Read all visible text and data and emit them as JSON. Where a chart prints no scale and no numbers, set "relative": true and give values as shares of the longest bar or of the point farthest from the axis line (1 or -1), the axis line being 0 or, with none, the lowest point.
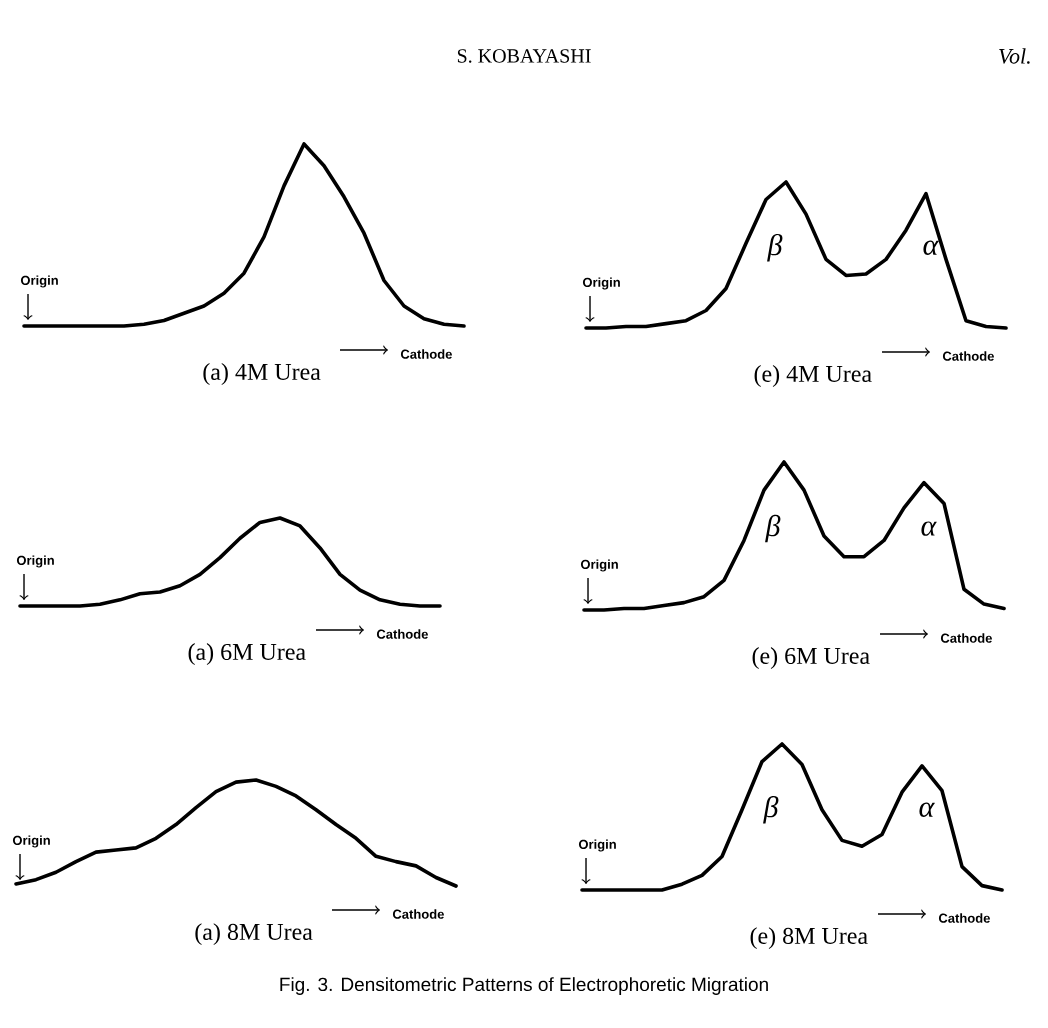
{
  "chart_data": [
    {
      "type": "line",
      "relative": true,
      "color": "#000000",
      "xlabel": "(a)   4M Urea",
      "annotations": [
        "Origin",
        "Cathode",
        "S. KOBAYASHI",
        "Vol."
      ],
      "categories": [
        null,
        null,
        null,
        null,
        null,
        null,
        null,
        null,
        null,
        null,
        null,
        null,
        null,
        null,
        null,
        null,
        null,
        null,
        null,
        null,
        null,
        null,
        null
      ],
      "values": [
        0,
        0,
        0,
        0,
        0,
        0,
        0.01,
        0.03,
        0.07,
        0.11,
        0.18,
        0.29,
        0.49,
        0.77,
        1.0,
        0.88,
        0.71,
        0.51,
        0.25,
        0.11,
        0.04,
        0.01,
        0
      ]
    },
    {
      "type": "line",
      "relative": true,
      "color": "#000000",
      "xlabel": "(e)   4M Urea",
      "annotations": [
        "Origin",
        "Cathode",
        "β",
        "α"
      ],
      "categories": [
        null,
        null,
        null,
        null,
        null,
        null,
        null,
        null,
        null,
        null,
        null,
        null,
        null,
        null,
        null,
        null,
        null,
        null,
        null,
        null,
        null,
        null
      ],
      "values": [
        0,
        0,
        0.01,
        0.01,
        0.03,
        0.05,
        0.12,
        0.27,
        0.58,
        0.88,
        1,
        0.78,
        0.47,
        0.36,
        0.37,
        0.47,
        0.67,
        0.92,
        0.47,
        0.05,
        0.01,
        0
      ]
    },
    {
      "type": "line",
      "relative": true,
      "color": "#000000",
      "xlabel": "(a)   6M Urea",
      "annotations": [
        "Origin",
        "Cathode"
      ],
      "categories": [
        null,
        null,
        null,
        null,
        null,
        null,
        null,
        null,
        null,
        null,
        null,
        null,
        null,
        null,
        null,
        null,
        null,
        null,
        null,
        null,
        null,
        null
      ],
      "values": [
        0,
        0,
        0,
        0,
        0.02,
        0.07,
        0.14,
        0.16,
        0.23,
        0.36,
        0.55,
        0.77,
        0.95,
        1,
        0.91,
        0.66,
        0.36,
        0.18,
        0.07,
        0.02,
        0,
        0
      ]
    },
    {
      "type": "line",
      "relative": true,
      "color": "#000000",
      "xlabel": "(e)   6M Urea",
      "annotations": [
        "Origin",
        "Cathode",
        "β",
        "α"
      ],
      "categories": [
        null,
        null,
        null,
        null,
        null,
        null,
        null,
        null,
        null,
        null,
        null,
        null,
        null,
        null,
        null,
        null,
        null,
        null,
        null,
        null,
        null,
        null
      ],
      "values": [
        0,
        0,
        0.01,
        0.01,
        0.03,
        0.05,
        0.09,
        0.2,
        0.47,
        0.81,
        1,
        0.81,
        0.5,
        0.36,
        0.36,
        0.47,
        0.69,
        0.86,
        0.72,
        0.14,
        0.04,
        0.01
      ]
    },
    {
      "type": "line",
      "relative": true,
      "color": "#000000",
      "xlabel": "(a)   8M Urea",
      "annotations": [
        "Origin",
        "Cathode"
      ],
      "categories": [
        null,
        null,
        null,
        null,
        null,
        null,
        null,
        null,
        null,
        null,
        null,
        null,
        null,
        null,
        null,
        null,
        null,
        null,
        null,
        null,
        null,
        null,
        null
      ],
      "values": [
        0.02,
        0.06,
        0.13,
        0.23,
        0.32,
        0.34,
        0.36,
        0.45,
        0.58,
        0.74,
        0.89,
        0.98,
        1,
        0.94,
        0.85,
        0.72,
        0.58,
        0.45,
        0.28,
        0.23,
        0.19,
        0.08,
        0
      ]
    },
    {
      "type": "line",
      "relative": true,
      "color": "#000000",
      "xlabel": "(e)   8M Urea",
      "annotations": [
        "Origin",
        "Cathode",
        "β",
        "α",
        "Fig.  3.     Densitometric Patterns of Electrophoretic Migration"
      ],
      "categories": [
        null,
        null,
        null,
        null,
        null,
        null,
        null,
        null,
        null,
        null,
        null,
        null,
        null,
        null,
        null,
        null,
        null,
        null,
        null,
        null,
        null,
        null
      ],
      "values": [
        0,
        0,
        0,
        0,
        0,
        0.04,
        0.1,
        0.23,
        0.55,
        0.88,
        1,
        0.86,
        0.55,
        0.34,
        0.3,
        0.38,
        0.67,
        0.85,
        0.68,
        0.16,
        0.03,
        0
      ]
    }
  ]
}
